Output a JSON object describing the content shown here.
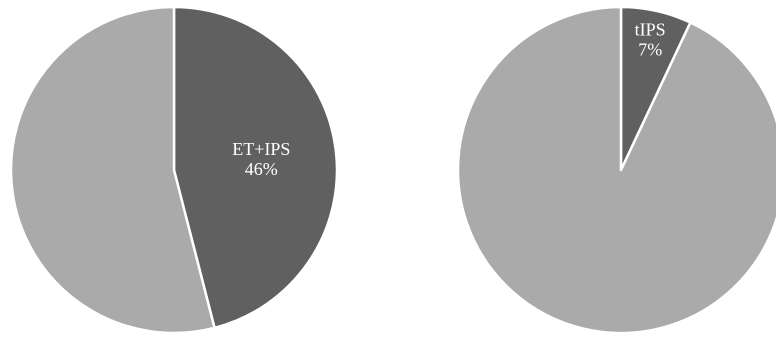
{
  "chart_data": [
    {
      "type": "pie",
      "slices": [
        {
          "label": "ET+IPS",
          "value": 46,
          "value_label": "46%",
          "color": "#606060",
          "labeled": true
        },
        {
          "label": "",
          "value": 54,
          "value_label": "",
          "color": "#aaaaaa",
          "labeled": false
        }
      ],
      "start": "12 o'clock",
      "direction": "clockwise"
    },
    {
      "type": "pie",
      "slices": [
        {
          "label": "tIPS",
          "value": 7,
          "value_label": "7%",
          "color": "#606060",
          "labeled": true
        },
        {
          "label": "",
          "value": 93,
          "value_label": "",
          "color": "#aaaaaa",
          "labeled": false
        }
      ],
      "start": "12 o'clock",
      "direction": "clockwise"
    }
  ],
  "colors": {
    "highlight": "#606060",
    "remainder": "#aaaaaa",
    "background": "#ffffff",
    "separator": "#ffffff"
  }
}
